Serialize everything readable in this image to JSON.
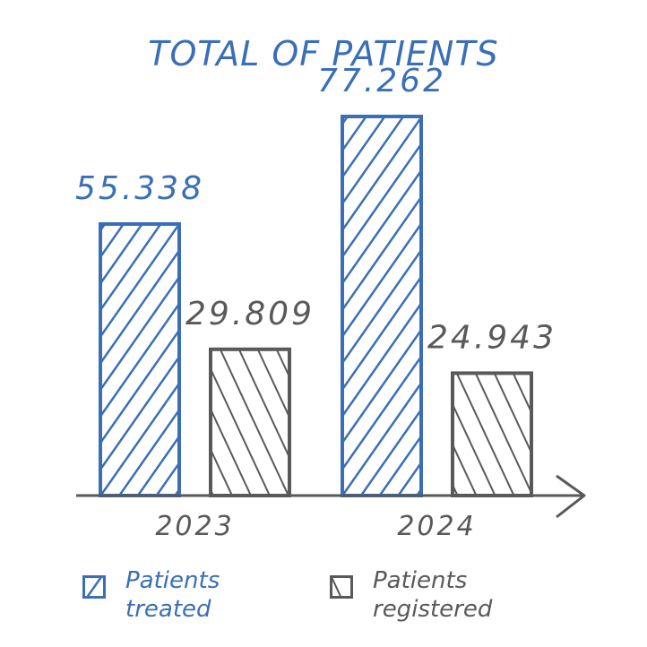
{
  "colors": {
    "treated": "#3a6fb7",
    "registered": "#595959",
    "axis": "#595959"
  },
  "chart_data": {
    "type": "bar",
    "title": "TOTAL OF PATIENTS",
    "categories": [
      "2023",
      "2024"
    ],
    "series": [
      {
        "name": "Patients treated",
        "values": [
          55338,
          77262
        ],
        "labels": [
          "55.338",
          "77.262"
        ]
      },
      {
        "name": "Patients registered",
        "values": [
          29809,
          24943
        ],
        "labels": [
          "29.809",
          "24.943"
        ]
      }
    ],
    "xlabel": "",
    "ylabel": "",
    "ylim": [
      0,
      80000
    ],
    "grid": false,
    "legend_position": "bottom"
  },
  "legend": {
    "treated": "Patients\ntreated",
    "registered": "Patients\nregistered"
  }
}
